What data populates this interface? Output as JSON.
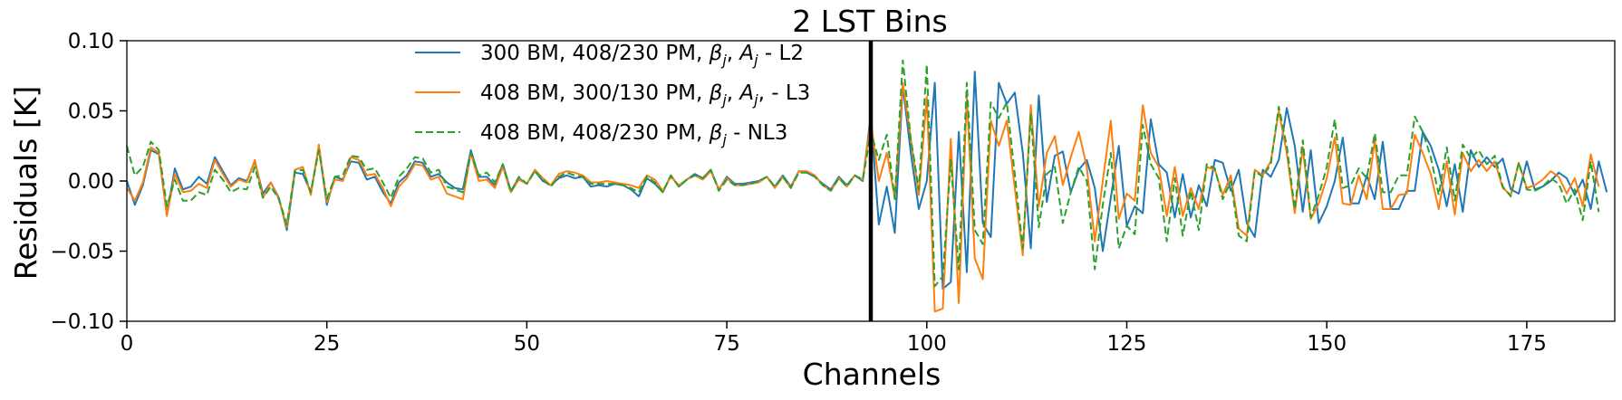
{
  "chart_data": {
    "type": "line",
    "title": "2 LST Bins",
    "xlabel": "Channels",
    "ylabel": "Residuals [K]",
    "xlim": [
      0,
      186
    ],
    "ylim": [
      -0.1,
      0.1
    ],
    "xticks": [
      0,
      25,
      50,
      75,
      100,
      125,
      150,
      175
    ],
    "xtick_labels": [
      "0",
      "25",
      "50",
      "75",
      "100",
      "125",
      "150",
      "175"
    ],
    "yticks": [
      -0.1,
      -0.05,
      0.0,
      0.05,
      0.1
    ],
    "ytick_labels": [
      "−0.10",
      "−0.05",
      "0.00",
      "0.05",
      "0.10"
    ],
    "grid": false,
    "legend_position": "top-left",
    "vline": {
      "x": 93,
      "color": "#000000"
    },
    "series": [
      {
        "name": "300 BM, 408/230 PM, βj, Aj - L2",
        "legend": {
          "pre": "300 BM, 408/230 PM, ",
          "sym1": "β",
          "sub1": "j",
          "mid": ", ",
          "sym2": "A",
          "sub2": "j",
          "post": " - L2"
        },
        "color": "#1f77b4",
        "dash": "solid",
        "values": [
          0.0,
          -0.017,
          -0.003,
          0.022,
          0.019,
          -0.024,
          0.009,
          -0.006,
          -0.004,
          0.003,
          -0.002,
          0.017,
          0.007,
          -0.003,
          0.002,
          0.0,
          0.014,
          -0.009,
          -0.001,
          -0.012,
          -0.035,
          0.006,
          0.005,
          -0.008,
          0.024,
          -0.017,
          0.003,
          0.001,
          0.014,
          0.013,
          0.001,
          0.003,
          -0.008,
          -0.016,
          -0.001,
          0.004,
          0.014,
          0.013,
          0.003,
          0.005,
          -0.001,
          -0.005,
          -0.006,
          0.022,
          0.003,
          0.003,
          -0.003,
          0.012,
          -0.007,
          0.002,
          -0.002,
          0.007,
          0.0,
          -0.003,
          0.002,
          0.004,
          0.002,
          0.003,
          -0.004,
          -0.003,
          -0.004,
          -0.002,
          -0.003,
          -0.006,
          -0.011,
          0.002,
          -0.002,
          -0.008,
          0.004,
          -0.004,
          0.001,
          0.005,
          0.002,
          0.008,
          -0.006,
          0.003,
          -0.002,
          -0.002,
          -0.001,
          0.0,
          0.003,
          -0.004,
          0.004,
          -0.004,
          0.007,
          0.006,
          0.003,
          -0.002,
          -0.006,
          0.003,
          -0.003,
          0.004,
          0.0,
          0.047,
          -0.031,
          -0.004,
          -0.037,
          0.068,
          0.02,
          -0.02,
          0.0,
          0.07,
          -0.077,
          -0.072,
          0.035,
          -0.065,
          0.078,
          -0.03,
          -0.04,
          0.07,
          0.055,
          0.063,
          0.02,
          -0.048,
          0.061,
          -0.015,
          0.018,
          0.021,
          -0.008,
          0.008,
          0.015,
          -0.005,
          -0.05,
          -0.012,
          0.025,
          -0.032,
          -0.018,
          -0.023,
          0.044,
          0.012,
          0.006,
          -0.026,
          0.005,
          -0.026,
          -0.003,
          -0.018,
          0.015,
          0.013,
          -0.007,
          0.008,
          -0.03,
          -0.04,
          0.008,
          0.003,
          0.015,
          0.052,
          0.025,
          -0.022,
          0.022,
          -0.03,
          -0.018,
          0.0,
          0.031,
          -0.016,
          -0.016,
          0.004,
          -0.013,
          0.028,
          -0.02,
          -0.02,
          -0.007,
          -0.007,
          0.035,
          0.025,
          0.008,
          -0.018,
          0.012,
          -0.022,
          0.022,
          0.01,
          0.017,
          0.01,
          0.016,
          -0.006,
          -0.009,
          0.014,
          -0.006,
          -0.004,
          0.0,
          0.006,
          0.002,
          -0.01,
          0.001,
          -0.02,
          0.014,
          -0.008
        ]
      },
      {
        "name": "408 BM, 300/130 PM, βj, Aj, - L3",
        "legend": {
          "pre": "408 BM, 300/130 PM, ",
          "sym1": "β",
          "sub1": "j",
          "mid": ", ",
          "sym2": "A",
          "sub2": "j",
          "post": ", - L3"
        },
        "color": "#ff7f0e",
        "dash": "solid",
        "values": [
          -0.005,
          -0.014,
          -0.001,
          0.024,
          0.02,
          -0.025,
          0.005,
          -0.008,
          -0.007,
          -0.002,
          -0.005,
          0.015,
          0.005,
          -0.004,
          0.001,
          -0.001,
          0.015,
          -0.012,
          -0.001,
          -0.013,
          -0.033,
          0.008,
          0.01,
          -0.01,
          0.026,
          -0.015,
          0.001,
          0.0,
          0.017,
          0.015,
          0.004,
          0.005,
          -0.005,
          -0.018,
          -0.004,
          0.002,
          0.012,
          0.011,
          0.001,
          0.003,
          -0.009,
          -0.011,
          -0.013,
          0.02,
          0.0,
          0.001,
          -0.005,
          0.01,
          -0.008,
          0.001,
          -0.002,
          0.008,
          0.002,
          -0.003,
          0.005,
          0.007,
          0.006,
          0.004,
          -0.001,
          -0.001,
          0.0,
          -0.001,
          -0.002,
          -0.003,
          -0.005,
          0.004,
          0.001,
          -0.007,
          0.003,
          -0.003,
          0.001,
          0.004,
          0.001,
          0.007,
          -0.006,
          0.002,
          -0.003,
          -0.003,
          -0.002,
          -0.001,
          0.003,
          -0.005,
          0.003,
          -0.005,
          0.007,
          0.007,
          0.004,
          -0.003,
          -0.007,
          0.002,
          -0.004,
          0.004,
          0.001,
          0.043,
          0.0,
          0.02,
          -0.012,
          0.07,
          0.03,
          -0.01,
          0.06,
          -0.093,
          -0.091,
          0.03,
          -0.087,
          0.06,
          -0.055,
          -0.07,
          0.043,
          0.025,
          0.043,
          -0.005,
          -0.053,
          0.054,
          -0.018,
          0.02,
          0.032,
          -0.003,
          0.017,
          0.035,
          0.01,
          -0.043,
          0.0,
          0.043,
          -0.027,
          -0.009,
          -0.014,
          0.054,
          0.02,
          0.01,
          -0.025,
          0.01,
          -0.025,
          -0.005,
          -0.02,
          0.01,
          0.008,
          -0.01,
          0.004,
          -0.034,
          -0.039,
          0.008,
          0.004,
          0.014,
          0.05,
          0.02,
          -0.023,
          0.024,
          -0.027,
          -0.016,
          0.002,
          0.031,
          -0.016,
          -0.017,
          0.004,
          -0.013,
          0.029,
          -0.02,
          -0.02,
          -0.01,
          -0.009,
          0.033,
          0.02,
          0.005,
          -0.02,
          0.014,
          -0.024,
          0.02,
          0.007,
          0.015,
          0.007,
          0.014,
          -0.005,
          -0.01,
          0.013,
          -0.005,
          -0.003,
          0.001,
          0.007,
          0.003,
          -0.009,
          0.002,
          -0.018,
          0.019,
          -0.004
        ]
      },
      {
        "name": "408 BM, 408/230 PM, βj - NL3",
        "legend": {
          "pre": "408 BM, 408/230 PM, ",
          "sym1": "β",
          "sub1": "j",
          "mid": "",
          "sym2": "",
          "sub2": "",
          "post": " - NL3"
        },
        "color": "#2ca02c",
        "dash": "dashed",
        "values": [
          0.025,
          0.004,
          0.01,
          0.028,
          0.022,
          -0.018,
          0.001,
          -0.014,
          -0.014,
          -0.008,
          -0.01,
          0.008,
          0.001,
          -0.008,
          -0.005,
          -0.006,
          0.01,
          -0.012,
          -0.004,
          -0.013,
          -0.031,
          0.007,
          0.008,
          -0.008,
          0.022,
          -0.013,
          0.003,
          0.004,
          0.018,
          0.017,
          0.008,
          0.009,
          -0.001,
          -0.012,
          0.003,
          0.009,
          0.017,
          0.016,
          0.006,
          0.008,
          -0.004,
          -0.006,
          -0.008,
          0.02,
          0.004,
          0.006,
          -0.001,
          0.012,
          -0.008,
          0.003,
          -0.002,
          0.007,
          0.001,
          -0.004,
          0.003,
          0.006,
          0.004,
          0.003,
          -0.002,
          -0.002,
          -0.002,
          -0.002,
          -0.003,
          -0.005,
          -0.008,
          0.003,
          -0.001,
          -0.008,
          0.004,
          -0.004,
          0.001,
          0.004,
          0.002,
          0.008,
          -0.007,
          0.001,
          -0.003,
          -0.003,
          -0.002,
          0.0,
          0.003,
          -0.004,
          0.003,
          -0.005,
          0.006,
          0.006,
          0.003,
          -0.003,
          -0.007,
          0.002,
          -0.004,
          0.004,
          0.001,
          0.035,
          0.015,
          0.033,
          -0.013,
          0.086,
          0.03,
          -0.006,
          0.083,
          -0.075,
          -0.068,
          0.015,
          -0.063,
          0.07,
          -0.035,
          -0.045,
          0.056,
          0.045,
          0.056,
          0.005,
          -0.048,
          0.048,
          -0.033,
          0.005,
          0.01,
          -0.03,
          -0.008,
          0.01,
          0.0,
          -0.063,
          -0.017,
          0.02,
          -0.048,
          -0.032,
          -0.038,
          0.04,
          0.012,
          0.002,
          -0.043,
          0.002,
          -0.039,
          -0.007,
          -0.035,
          0.012,
          0.009,
          -0.013,
          0.0,
          -0.039,
          -0.043,
          0.007,
          0.003,
          0.012,
          0.053,
          0.025,
          -0.02,
          0.029,
          -0.026,
          -0.01,
          0.01,
          0.044,
          -0.005,
          -0.003,
          0.009,
          0.002,
          0.034,
          -0.008,
          -0.008,
          0.004,
          0.004,
          0.046,
          0.035,
          0.017,
          -0.01,
          0.024,
          -0.014,
          0.026,
          0.016,
          0.022,
          0.012,
          0.018,
          -0.004,
          -0.011,
          0.013,
          -0.006,
          -0.007,
          -0.004,
          0.002,
          -0.002,
          -0.016,
          -0.006,
          -0.028,
          0.014,
          -0.022
        ]
      }
    ]
  }
}
